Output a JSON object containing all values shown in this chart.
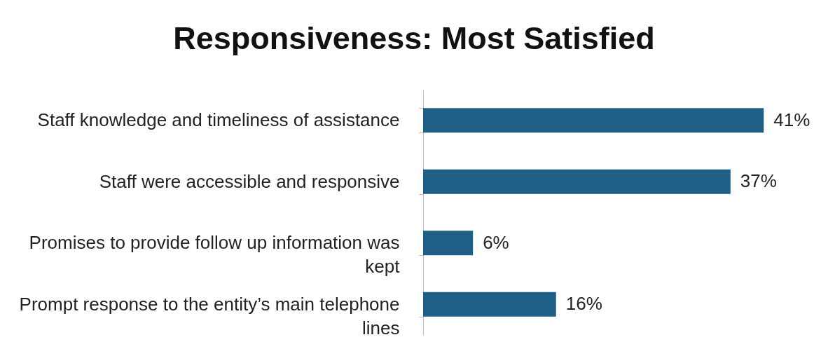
{
  "chart_data": {
    "type": "bar",
    "orientation": "horizontal",
    "title": "Responsiveness: Most Satisfied",
    "categories": [
      "Staff knowledge and timeliness of assistance",
      "Staff were accessible and responsive",
      "Promises to provide follow up information was kept",
      "Prompt response to the entity’s main telephone lines"
    ],
    "values": [
      41,
      37,
      6,
      16
    ],
    "color": "#1f5f86",
    "value_labels": [
      "41%",
      "37%",
      "6%",
      "16%"
    ],
    "grid": false
  }
}
